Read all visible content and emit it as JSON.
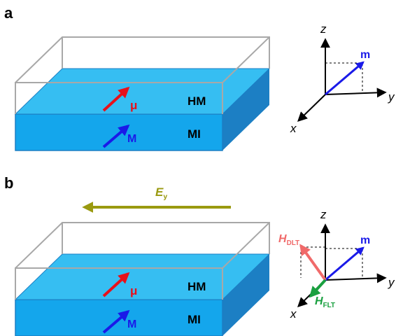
{
  "panels": [
    {
      "label": "a",
      "layers": [
        "HM",
        "MI"
      ],
      "moments": [
        "μ",
        "M"
      ],
      "axes": {
        "z": "z",
        "y": "y",
        "x": "x",
        "m": "m"
      }
    },
    {
      "label": "b",
      "field": {
        "symbol": "E",
        "subscript": "y"
      },
      "layers": [
        "HM",
        "MI"
      ],
      "moments": [
        "μ",
        "M"
      ],
      "axes": {
        "z": "z",
        "y": "y",
        "x": "x",
        "m": "m"
      },
      "torques": [
        {
          "symbol": "H",
          "subscript": "DLT"
        },
        {
          "symbol": "H",
          "subscript": "FLT"
        }
      ]
    }
  ]
}
